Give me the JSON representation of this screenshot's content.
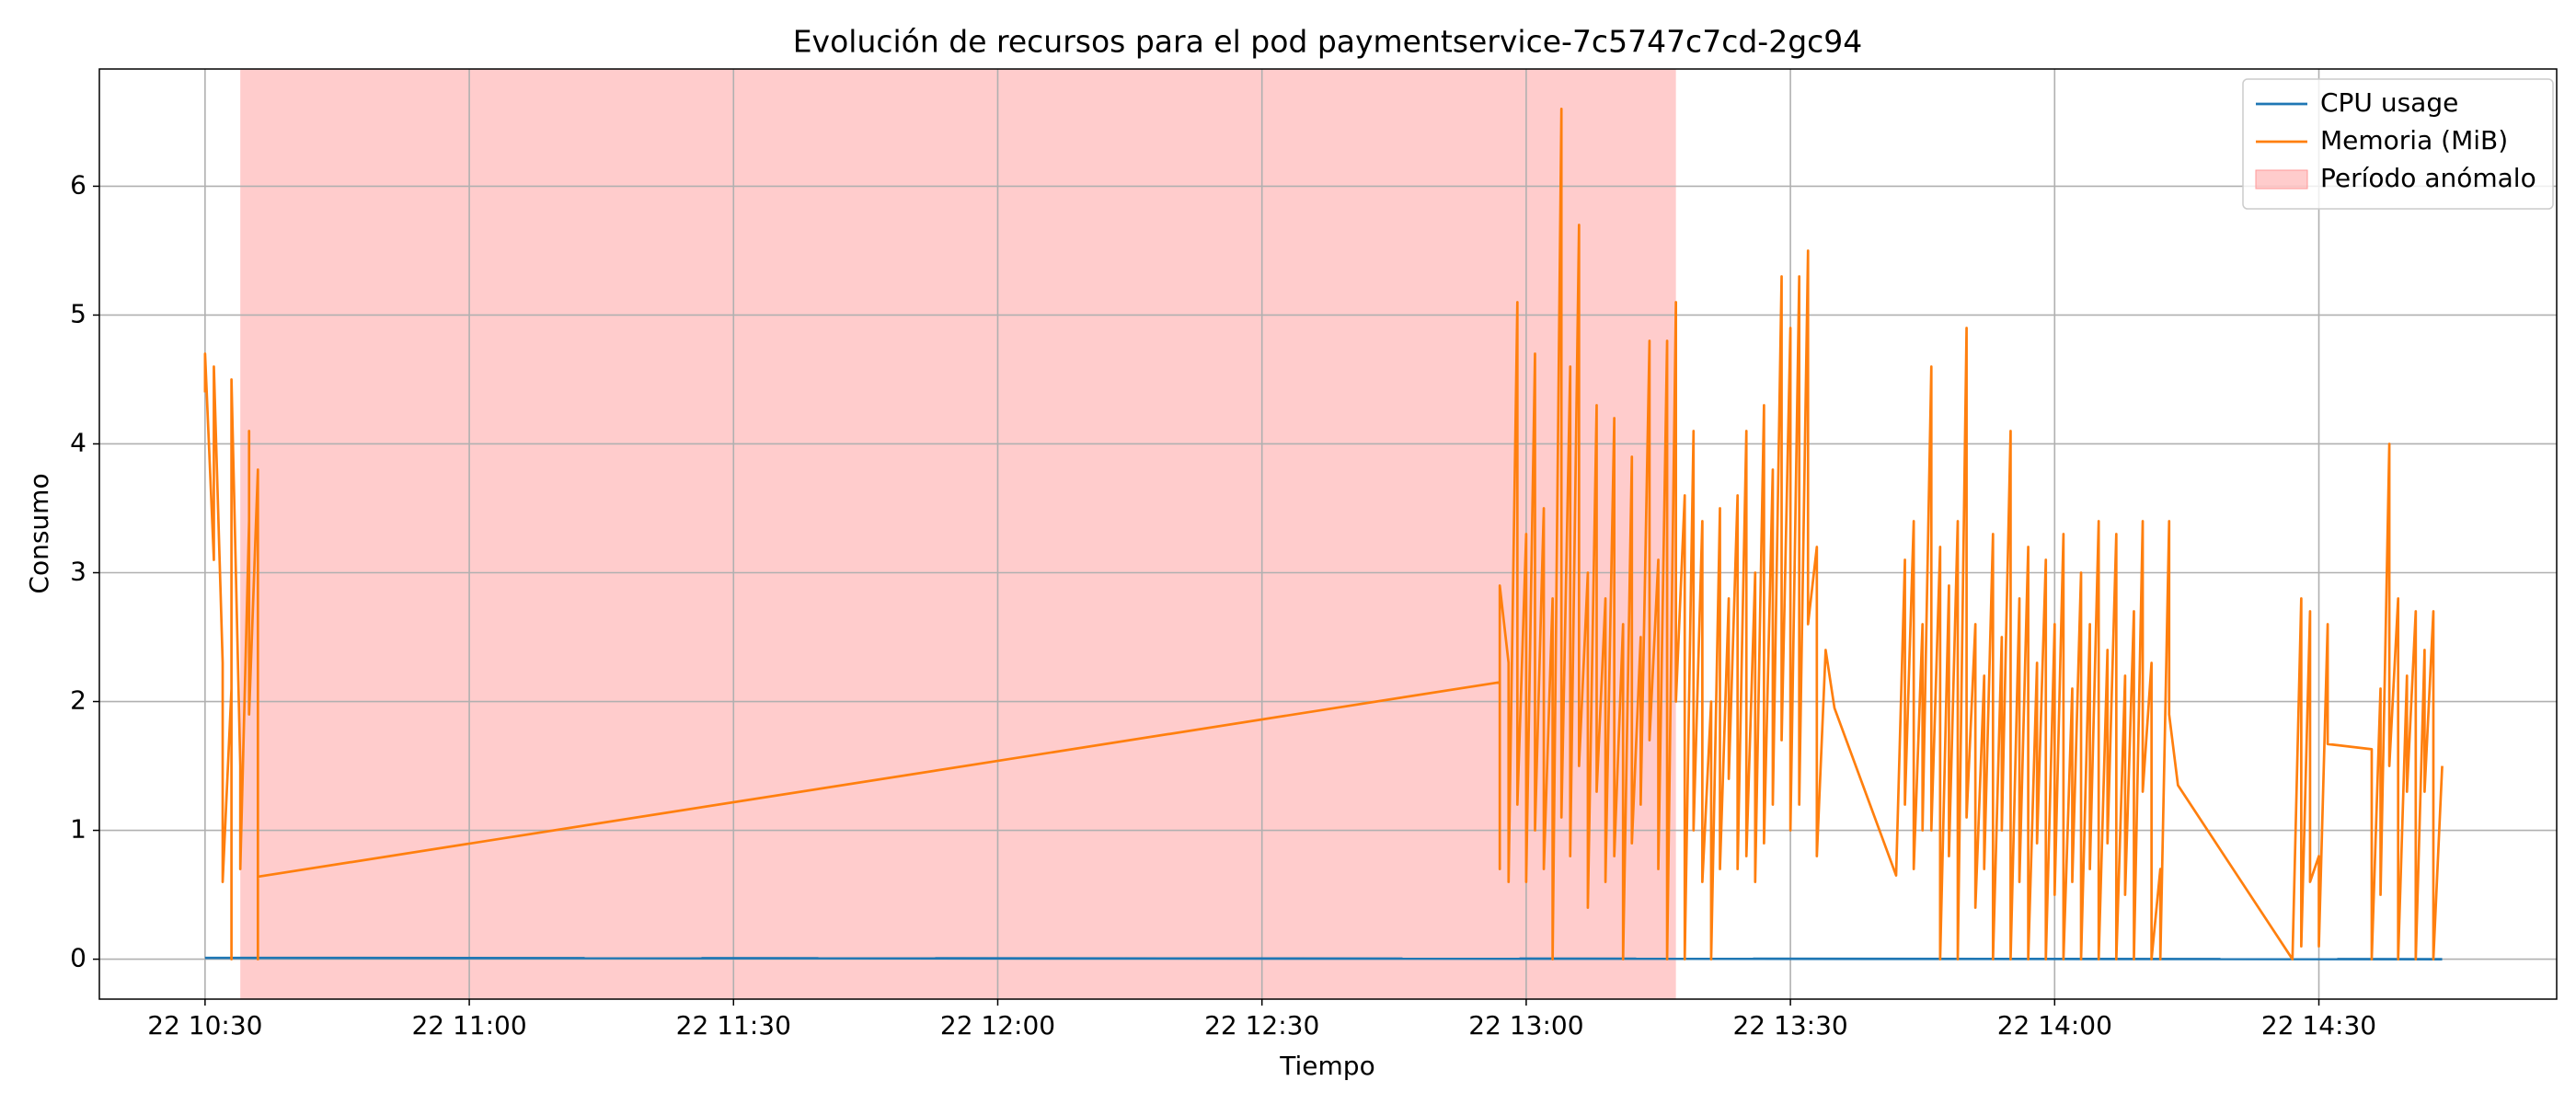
{
  "chart_data": {
    "type": "line",
    "title": "Evolución de recursos para el pod paymentservice-7c5747c7cd-2gc94",
    "x_label": "Tiempo",
    "y_label": "Consumo",
    "xlim": [
      "22 10:18",
      "22 14:57"
    ],
    "xticks": [
      "22 10:30",
      "22 11:00",
      "22 11:30",
      "22 12:00",
      "22 12:30",
      "22 13:00",
      "22 13:30",
      "22 14:00",
      "22 14:30"
    ],
    "ylim": [
      -0.31,
      6.91
    ],
    "yticks": [
      0,
      1,
      2,
      3,
      4,
      5,
      6
    ],
    "grid": true,
    "legend": "upper right",
    "anomaly_span": {
      "name": "Período anómalo",
      "color": "#ff9999",
      "x": [
        "22 10:34",
        "22 13:17"
      ]
    },
    "series": [
      {
        "name": "CPU usage",
        "color": "#1f77b4",
        "x": [
          "22 10:30",
          "22 14:44"
        ],
        "values": [
          0.01,
          0.0
        ]
      },
      {
        "name": "Memoria (MiB)",
        "color": "#ff7f0e",
        "x": [
          "22 10:30",
          "22 10:30",
          "22 10:31",
          "22 10:31",
          "22 10:32",
          "22 10:32",
          "22 10:33",
          "22 10:33",
          "22 10:33",
          "22 10:34",
          "22 10:34",
          "22 10:35",
          "22 10:35",
          "22 10:35",
          "22 10:36",
          "22 10:36",
          "22 10:36",
          "22 10:36",
          "22 10:36",
          "22 12:57",
          "22 12:57",
          "22 12:57",
          "22 12:58",
          "22 12:58",
          "22 12:59",
          "22 12:59",
          "22 13:00",
          "22 13:00",
          "22 13:01",
          "22 13:01",
          "22 13:02",
          "22 13:02",
          "22 13:03",
          "22 13:03",
          "22 13:04",
          "22 13:04",
          "22 13:05",
          "22 13:05",
          "22 13:06",
          "22 13:06",
          "22 13:07",
          "22 13:07",
          "22 13:08",
          "22 13:08",
          "22 13:09",
          "22 13:09",
          "22 13:10",
          "22 13:10",
          "22 13:11",
          "22 13:11",
          "22 13:12",
          "22 13:12",
          "22 13:13",
          "22 13:13",
          "22 13:14",
          "22 13:14",
          "22 13:15",
          "22 13:15",
          "22 13:16",
          "22 13:16",
          "22 13:17",
          "22 13:17",
          "22 13:18",
          "22 13:18",
          "22 13:19",
          "22 13:19",
          "22 13:20",
          "22 13:20",
          "22 13:21",
          "22 13:21",
          "22 13:22",
          "22 13:22",
          "22 13:23",
          "22 13:23",
          "22 13:24",
          "22 13:24",
          "22 13:25",
          "22 13:25",
          "22 13:26",
          "22 13:26",
          "22 13:27",
          "22 13:27",
          "22 13:28",
          "22 13:28",
          "22 13:29",
          "22 13:29",
          "22 13:30",
          "22 13:30",
          "22 13:31",
          "22 13:31",
          "22 13:32",
          "22 13:32",
          "22 13:33",
          "22 13:33",
          "22 13:34",
          "22 13:34",
          "22 13:35",
          "22 13:42",
          "22 13:43",
          "22 13:43",
          "22 13:44",
          "22 13:44",
          "22 13:45",
          "22 13:45",
          "22 13:46",
          "22 13:46",
          "22 13:47",
          "22 13:47",
          "22 13:48",
          "22 13:48",
          "22 13:49",
          "22 13:49",
          "22 13:50",
          "22 13:50",
          "22 13:51",
          "22 13:51",
          "22 13:52",
          "22 13:52",
          "22 13:53",
          "22 13:53",
          "22 13:54",
          "22 13:54",
          "22 13:55",
          "22 13:55",
          "22 13:56",
          "22 13:56",
          "22 13:57",
          "22 13:57",
          "22 13:58",
          "22 13:58",
          "22 13:59",
          "22 13:59",
          "22 14:00",
          "22 14:00",
          "22 14:01",
          "22 14:01",
          "22 14:02",
          "22 14:02",
          "22 14:03",
          "22 14:03",
          "22 14:04",
          "22 14:04",
          "22 14:05",
          "22 14:05",
          "22 14:06",
          "22 14:06",
          "22 14:07",
          "22 14:07",
          "22 14:08",
          "22 14:08",
          "22 14:09",
          "22 14:09",
          "22 14:10",
          "22 14:10",
          "22 14:11",
          "22 14:11",
          "22 14:12",
          "22 14:12",
          "22 14:13",
          "22 14:13",
          "22 14:14",
          "22 14:27",
          "22 14:28",
          "22 14:28",
          "22 14:29",
          "22 14:29",
          "22 14:30",
          "22 14:30",
          "22 14:31",
          "22 14:31",
          "22 14:36",
          "22 14:36",
          "22 14:37",
          "22 14:37",
          "22 14:38",
          "22 14:38",
          "22 14:39",
          "22 14:39",
          "22 14:40",
          "22 14:40",
          "22 14:41",
          "22 14:41",
          "22 14:42",
          "22 14:42",
          "22 14:43",
          "22 14:43",
          "22 14:44"
        ],
        "values": [
          4.4,
          4.7,
          3.1,
          4.6,
          2.3,
          0.6,
          2.1,
          0.0,
          4.5,
          1.5,
          0.7,
          3.4,
          4.1,
          1.9,
          3.8,
          0.0,
          2.2,
          2.7,
          0.64,
          2.15,
          0.7,
          2.9,
          2.3,
          0.6,
          5.1,
          1.2,
          3.3,
          0.6,
          4.7,
          1.0,
          3.5,
          0.7,
          2.8,
          0.0,
          6.6,
          1.1,
          4.6,
          0.8,
          5.7,
          1.5,
          3.0,
          0.4,
          4.3,
          1.3,
          2.8,
          0.6,
          4.2,
          0.8,
          2.6,
          0.0,
          3.9,
          0.9,
          2.5,
          1.2,
          4.8,
          1.7,
          3.1,
          0.7,
          4.8,
          0.0,
          5.1,
          2.0,
          3.6,
          0.0,
          4.1,
          1.0,
          3.4,
          0.6,
          2.0,
          0.0,
          3.5,
          0.7,
          2.8,
          1.4,
          3.6,
          0.7,
          4.1,
          0.8,
          3.0,
          0.6,
          4.3,
          0.9,
          3.8,
          1.2,
          5.3,
          1.7,
          4.9,
          1.0,
          5.3,
          1.2,
          5.5,
          2.6,
          3.2,
          0.8,
          2.4,
          2.4,
          1.95,
          0.65,
          3.1,
          1.2,
          3.4,
          0.7,
          2.6,
          1.0,
          4.6,
          1.0,
          3.2,
          0.0,
          2.9,
          0.8,
          3.4,
          0.0,
          4.9,
          1.1,
          2.6,
          0.4,
          2.2,
          0.7,
          3.3,
          0.0,
          2.5,
          1.0,
          4.1,
          0.0,
          2.8,
          0.6,
          3.2,
          0.0,
          2.3,
          0.9,
          3.1,
          0.0,
          2.6,
          0.5,
          3.3,
          0.0,
          2.1,
          0.6,
          3.0,
          0.0,
          2.6,
          0.7,
          3.4,
          0.0,
          2.4,
          0.9,
          3.3,
          0.0,
          2.2,
          0.5,
          2.7,
          0.0,
          3.4,
          1.3,
          2.3,
          0.0,
          0.7,
          0.0,
          3.4,
          1.9,
          1.35,
          0.0,
          2.8,
          0.1,
          2.7,
          0.6,
          0.8,
          0.1,
          2.6,
          1.67,
          1.63,
          0.0,
          2.1,
          0.5,
          4.0,
          1.5,
          2.8,
          0.0,
          2.2,
          1.3,
          2.7,
          0.0,
          2.4,
          1.3,
          2.7,
          0.0,
          1.5
        ]
      }
    ]
  }
}
